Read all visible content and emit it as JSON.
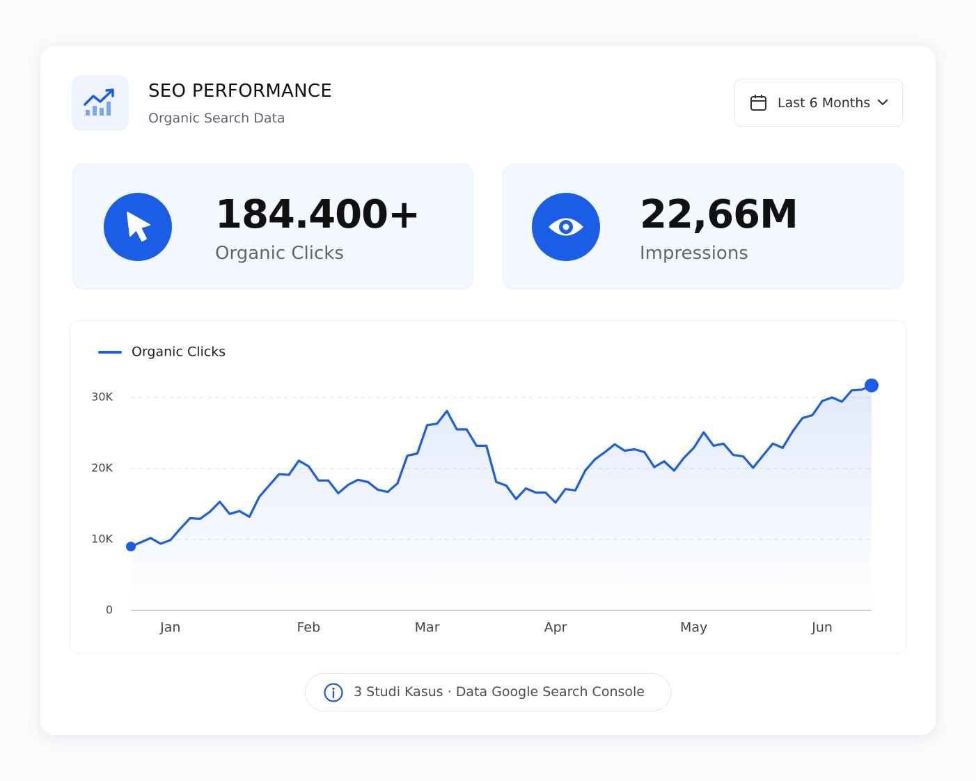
{
  "header": {
    "title": "SEO PERFORMANCE",
    "subtitle": "Organic Search Data",
    "range": "Last 6 Months"
  },
  "stats": [
    {
      "value": "184.400+",
      "label": "Organic Clicks"
    },
    {
      "value": "22,66M",
      "label": "Impressions"
    }
  ],
  "chart_data": {
    "type": "line",
    "categories": [
      null,
      null,
      null,
      null,
      "Jan",
      null,
      null,
      null,
      null,
      null,
      null,
      null,
      null,
      null,
      null,
      null,
      null,
      null,
      "Feb",
      null,
      null,
      null,
      null,
      null,
      null,
      null,
      null,
      null,
      null,
      null,
      "Mar",
      null,
      null,
      null,
      null,
      null,
      null,
      null,
      null,
      null,
      null,
      null,
      null,
      "Apr",
      null,
      null,
      null,
      null,
      null,
      null,
      null,
      null,
      null,
      null,
      null,
      null,
      null,
      "May",
      null,
      null,
      null,
      null,
      null,
      null,
      null,
      null,
      null,
      null,
      null,
      null,
      "Jun",
      null,
      null,
      null,
      null,
      null
    ],
    "series": [
      {
        "name": "Organic Clicks",
        "color": "#1a5ee8",
        "values": [
          9000,
          9600,
          10200,
          9400,
          9900,
          11500,
          13000,
          12900,
          13900,
          15300,
          13600,
          14000,
          13200,
          16000,
          17600,
          19200,
          19100,
          21100,
          20300,
          18300,
          18300,
          16500,
          17700,
          18400,
          18100,
          17000,
          16700,
          17900,
          21800,
          22100,
          26100,
          26300,
          28100,
          25500,
          25500,
          23200,
          23200,
          18100,
          17600,
          15700,
          17200,
          16600,
          16600,
          15200,
          17100,
          16900,
          19700,
          21300,
          22300,
          23400,
          22500,
          22700,
          22300,
          20200,
          21000,
          19700,
          21500,
          22900,
          25100,
          23200,
          23500,
          21900,
          21700,
          20100,
          21800,
          23500,
          22900,
          25200,
          27100,
          27500,
          29500,
          30000,
          29400,
          31000,
          31100,
          31700
        ]
      }
    ],
    "ylim": [
      0,
      32000
    ],
    "yticks": [
      0,
      {
        "value": 10000,
        "label": "10K"
      },
      {
        "value": 20000,
        "label": "20K"
      },
      {
        "value": 30000,
        "label": "30K"
      }
    ],
    "grid": true
  },
  "footer": "3 Studi Kasus · Data Google Search Console"
}
